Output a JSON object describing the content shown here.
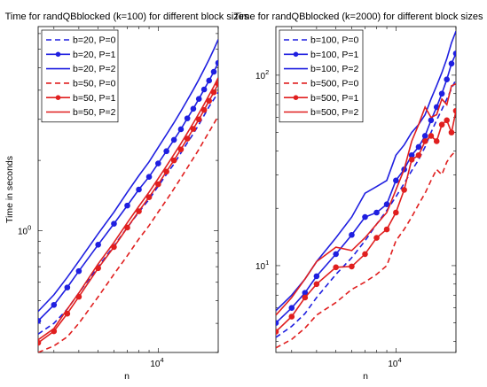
{
  "chart_data": [
    {
      "type": "line",
      "title": "Time for randQBblocked (k=100) for different block sizes",
      "xlabel": "n",
      "ylabel": "Time in seconds",
      "xscale": "log",
      "yscale": "log",
      "xlim": [
        2500,
        20000
      ],
      "ylim": [
        0.3,
        7.5
      ],
      "x_tick_values": [
        10000
      ],
      "x_tick_labels": [
        "10^4"
      ],
      "y_tick_values": [
        1
      ],
      "y_tick_labels": [
        "10^0"
      ],
      "legend_position": "top-left",
      "x": [
        2500,
        3000,
        3500,
        4000,
        5000,
        6000,
        7000,
        8000,
        9000,
        10000,
        11000,
        12000,
        13000,
        14000,
        15000,
        16000,
        17000,
        18000,
        19000,
        20000
      ],
      "series": [
        {
          "name": "b=20, P=0",
          "color": "#1f1fe0",
          "dash": "dashed",
          "marker": false,
          "values": [
            0.36,
            0.4,
            0.46,
            0.54,
            0.7,
            0.86,
            1.03,
            1.2,
            1.36,
            1.55,
            1.74,
            1.93,
            2.15,
            2.38,
            2.6,
            2.85,
            3.12,
            3.4,
            3.65,
            3.92
          ]
        },
        {
          "name": "b=20, P=1",
          "color": "#1f1fe0",
          "dash": "solid",
          "marker": true,
          "values": [
            0.41,
            0.48,
            0.57,
            0.67,
            0.87,
            1.07,
            1.28,
            1.5,
            1.7,
            1.94,
            2.19,
            2.45,
            2.72,
            3.03,
            3.33,
            3.67,
            4.03,
            4.4,
            4.8,
            5.24
          ]
        },
        {
          "name": "b=20, P=2",
          "color": "#1f1fe0",
          "dash": "solid",
          "marker": false,
          "values": [
            0.45,
            0.53,
            0.63,
            0.74,
            0.97,
            1.2,
            1.46,
            1.72,
            1.97,
            2.27,
            2.58,
            2.9,
            3.25,
            3.63,
            4.02,
            4.45,
            4.92,
            5.42,
            5.98,
            6.6
          ]
        },
        {
          "name": "b=50, P=0",
          "color": "#e01f1f",
          "dash": "dashed",
          "marker": false,
          "values": [
            0.3,
            0.32,
            0.35,
            0.4,
            0.52,
            0.65,
            0.78,
            0.92,
            1.05,
            1.2,
            1.35,
            1.51,
            1.68,
            1.86,
            2.04,
            2.23,
            2.44,
            2.65,
            2.87,
            3.1
          ]
        },
        {
          "name": "b=50, P=1",
          "color": "#e01f1f",
          "dash": "solid",
          "marker": true,
          "values": [
            0.33,
            0.37,
            0.44,
            0.52,
            0.69,
            0.85,
            1.03,
            1.21,
            1.39,
            1.58,
            1.79,
            2.0,
            2.23,
            2.48,
            2.73,
            3.0,
            3.29,
            3.6,
            3.92,
            4.26
          ]
        },
        {
          "name": "b=50, P=2",
          "color": "#e01f1f",
          "dash": "solid",
          "marker": false,
          "values": [
            0.34,
            0.38,
            0.46,
            0.54,
            0.72,
            0.89,
            1.08,
            1.27,
            1.46,
            1.67,
            1.89,
            2.12,
            2.36,
            2.62,
            2.89,
            3.18,
            3.48,
            3.81,
            4.15,
            4.52
          ]
        }
      ]
    },
    {
      "type": "line",
      "title": "Time for randQBblocked (k=2000) for different block sizes",
      "xlabel": "n",
      "ylabel": "",
      "xscale": "log",
      "yscale": "log",
      "xlim": [
        2500,
        20000
      ],
      "ylim": [
        3.5,
        180
      ],
      "x_tick_values": [
        10000
      ],
      "x_tick_labels": [
        "10^4"
      ],
      "y_tick_values": [
        10,
        100
      ],
      "y_tick_labels": [
        "10^1",
        "10^2"
      ],
      "legend_position": "top-left",
      "x": [
        2500,
        3000,
        3500,
        4000,
        5000,
        6000,
        7000,
        8000,
        9000,
        10000,
        11000,
        12000,
        13000,
        14000,
        15000,
        16000,
        17000,
        18000,
        19000,
        20000
      ],
      "series": [
        {
          "name": "b=100, P=0",
          "color": "#1f1fe0",
          "dash": "dashed",
          "marker": false,
          "values": [
            4.2,
            4.8,
            5.6,
            6.8,
            9.0,
            11.0,
            13.5,
            16.5,
            19.5,
            23.0,
            27.0,
            31.5,
            36.0,
            42.0,
            50.0,
            58.0,
            66.0,
            75.0,
            85.0,
            95.0
          ]
        },
        {
          "name": "b=100, P=1",
          "color": "#1f1fe0",
          "dash": "solid",
          "marker": true,
          "values": [
            5.0,
            6.0,
            7.2,
            8.8,
            11.5,
            14.5,
            18.0,
            19.0,
            21.0,
            28.0,
            32.0,
            38.0,
            42.0,
            48.0,
            58.0,
            68.0,
            80.0,
            95.0,
            115.0,
            130.0
          ]
        },
        {
          "name": "b=100, P=2",
          "color": "#1f1fe0",
          "dash": "solid",
          "marker": false,
          "values": [
            5.8,
            7.0,
            8.5,
            10.5,
            14.0,
            18.0,
            24.0,
            26.0,
            28.0,
            38.0,
            43.0,
            50.0,
            55.0,
            62.0,
            75.0,
            88.0,
            103.0,
            122.0,
            148.0,
            170.0
          ]
        },
        {
          "name": "b=500, P=0",
          "color": "#e01f1f",
          "dash": "dashed",
          "marker": false,
          "values": [
            3.7,
            4.1,
            4.7,
            5.5,
            6.4,
            7.5,
            8.2,
            9.0,
            10.0,
            13.5,
            15.5,
            18.0,
            21.0,
            24.0,
            28.0,
            32.0,
            30.0,
            35.0,
            38.0,
            40.0
          ]
        },
        {
          "name": "b=500, P=1",
          "color": "#e01f1f",
          "dash": "solid",
          "marker": true,
          "values": [
            4.5,
            5.4,
            6.8,
            8.0,
            9.8,
            9.9,
            11.5,
            14.0,
            15.5,
            19.0,
            25.0,
            36.0,
            38.0,
            45.0,
            48.0,
            45.0,
            55.0,
            58.0,
            50.0,
            65.0
          ]
        },
        {
          "name": "b=500, P=2",
          "color": "#e01f1f",
          "dash": "solid",
          "marker": false,
          "values": [
            5.5,
            6.8,
            8.5,
            10.5,
            12.5,
            12.0,
            14.0,
            16.5,
            19.0,
            25.0,
            32.0,
            45.0,
            55.0,
            68.0,
            60.0,
            62.0,
            75.0,
            70.0,
            88.0,
            90.0
          ]
        }
      ]
    }
  ]
}
